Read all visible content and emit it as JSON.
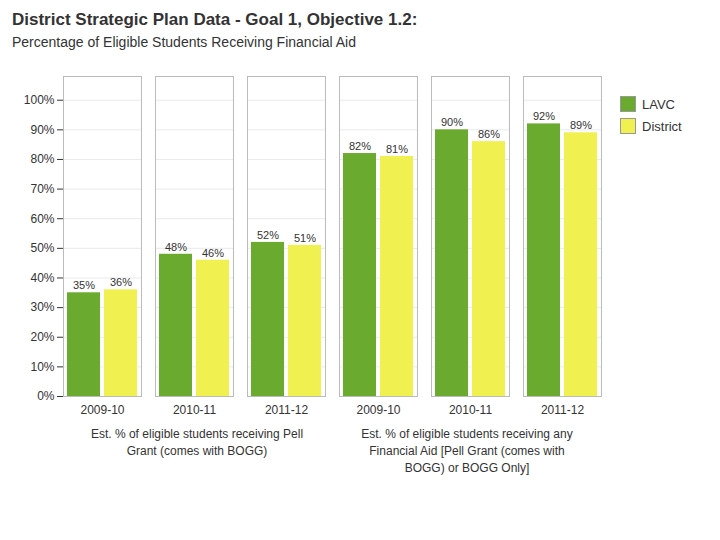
{
  "chart_data": {
    "type": "bar",
    "title": "District Strategic Plan Data - Goal 1, Objective 1.2:",
    "subtitle": "Percentage of Eligible Students Receiving Financial Aid",
    "categories": [
      "2009-10",
      "2010-11",
      "2011-12",
      "2009-10",
      "2010-11",
      "2011-12"
    ],
    "series": [
      {
        "name": "LAVC",
        "color": "#6aaa2e",
        "values": [
          0.35,
          0.48,
          0.52,
          0.82,
          0.9,
          0.92
        ],
        "value_labels": [
          "35%",
          "48%",
          "52%",
          "82%",
          "90%",
          "92%"
        ]
      },
      {
        "name": "District",
        "color": "#f0f050",
        "values": [
          0.36,
          0.46,
          0.51,
          0.81,
          0.86,
          0.89
        ],
        "value_labels": [
          "36%",
          "46%",
          "51%",
          "81%",
          "86%",
          "89%"
        ]
      }
    ],
    "ylim": [
      0,
      1.08
    ],
    "yticks": [
      {
        "value": 0.0,
        "label": "0%"
      },
      {
        "value": 0.1,
        "label": "10%"
      },
      {
        "value": 0.2,
        "label": "20%"
      },
      {
        "value": 0.3,
        "label": "30%"
      },
      {
        "value": 0.4,
        "label": "40%"
      },
      {
        "value": 0.5,
        "label": "50%"
      },
      {
        "value": 0.6,
        "label": "60%"
      },
      {
        "value": 0.7,
        "label": "70%"
      },
      {
        "value": 0.8,
        "label": "80%"
      },
      {
        "value": 0.9,
        "label": "90%"
      },
      {
        "value": 1.0,
        "label": "100%"
      }
    ],
    "grid": true,
    "legend": "right",
    "data_labels": true,
    "annotations": [
      "Est. % of eligible students receiving Pell\nGrant (comes with BOGG)",
      "Est. % of eligible students receiving any\nFinancial Aid [Pell Grant (comes with\nBOGG) or BOGG Only]"
    ]
  }
}
